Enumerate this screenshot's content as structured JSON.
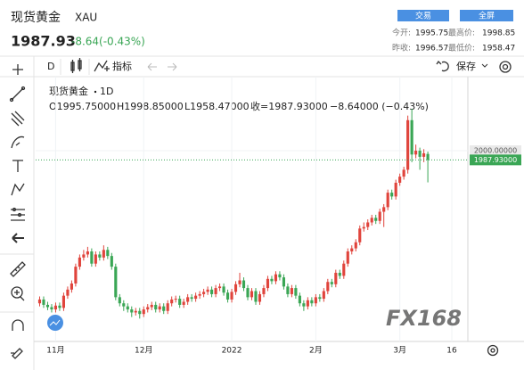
{
  "header": {
    "name": "现货黄金",
    "symbol": "XAU",
    "price": "1987.93",
    "change": "-8.64(-0.43%)",
    "buttons": [
      "交易",
      "全屏"
    ],
    "stats": [
      {
        "label": "今开:",
        "value": "1995.75"
      },
      {
        "label": "最高价:",
        "value": "1998.85"
      },
      {
        "label": "昨收:",
        "value": "1996.57"
      },
      {
        "label": "最低价:",
        "value": "1958.47"
      }
    ]
  },
  "toolbar": {
    "interval": "D",
    "indicators": "指标",
    "save": "保存"
  },
  "watermark": "FX168",
  "chart_data": {
    "type": "candlestick",
    "title": "现货黄金",
    "interval": "1D",
    "legend": {
      "open": "O1995.75000",
      "high": "H1998.85000",
      "low": "L1958.47000",
      "close": "收=1987.93000",
      "change": "−8.64000 (−0.43%)"
    },
    "open": [
      1800,
      1805,
      1798,
      1795,
      1792,
      1797,
      1794,
      1810,
      1818,
      1826,
      1848,
      1860,
      1864,
      1868,
      1852,
      1864,
      1860,
      1870,
      1862,
      1848,
      1808,
      1800,
      1796,
      1792,
      1788,
      1790,
      1786,
      1792,
      1795,
      1798,
      1792,
      1796,
      1790,
      1800,
      1805,
      1806,
      1798,
      1802,
      1808,
      1806,
      1810,
      1812,
      1815,
      1818,
      1812,
      1820,
      1822,
      1814,
      1805,
      1815,
      1825,
      1830,
      1820,
      1808,
      1816,
      1802,
      1812,
      1820,
      1832,
      1829,
      1838,
      1834,
      1822,
      1812,
      1820,
      1810,
      1800,
      1796,
      1804,
      1800,
      1808,
      1806,
      1816,
      1828,
      1825,
      1840,
      1836,
      1852,
      1868,
      1872,
      1880,
      1898,
      1900,
      1906,
      1912,
      1908,
      1920,
      1926,
      1945,
      1940,
      1958,
      1966,
      1975,
      2040,
      1995,
      2000,
      1992,
      1995.75
    ],
    "high": [
      1809,
      1809,
      1802,
      1799,
      1801,
      1801,
      1814,
      1822,
      1830,
      1852,
      1864,
      1870,
      1874,
      1872,
      1868,
      1868,
      1876,
      1874,
      1866,
      1852,
      1812,
      1804,
      1800,
      1796,
      1794,
      1794,
      1796,
      1799,
      1802,
      1802,
      1800,
      1800,
      1804,
      1809,
      1810,
      1810,
      1806,
      1812,
      1812,
      1814,
      1816,
      1819,
      1822,
      1822,
      1824,
      1826,
      1826,
      1818,
      1819,
      1829,
      1840,
      1834,
      1824,
      1820,
      1820,
      1816,
      1824,
      1836,
      1836,
      1842,
      1842,
      1838,
      1826,
      1824,
      1824,
      1814,
      1804,
      1808,
      1808,
      1812,
      1812,
      1820,
      1832,
      1832,
      1844,
      1844,
      1856,
      1872,
      1876,
      1884,
      1902,
      1906,
      1910,
      1916,
      1916,
      1924,
      1930,
      1949,
      1949,
      1962,
      1970,
      1979,
      2046,
      2055,
      2008,
      2004,
      2002,
      1998.85
    ],
    "low": [
      1796,
      1794,
      1791,
      1788,
      1788,
      1790,
      1790,
      1806,
      1814,
      1822,
      1844,
      1856,
      1860,
      1848,
      1848,
      1856,
      1856,
      1858,
      1844,
      1804,
      1796,
      1790,
      1788,
      1782,
      1784,
      1780,
      1782,
      1788,
      1791,
      1788,
      1788,
      1786,
      1786,
      1796,
      1801,
      1794,
      1794,
      1798,
      1802,
      1802,
      1806,
      1808,
      1811,
      1808,
      1808,
      1816,
      1810,
      1801,
      1801,
      1811,
      1821,
      1816,
      1804,
      1804,
      1798,
      1798,
      1808,
      1816,
      1825,
      1825,
      1830,
      1818,
      1808,
      1808,
      1806,
      1796,
      1790,
      1792,
      1796,
      1796,
      1802,
      1802,
      1812,
      1821,
      1821,
      1832,
      1832,
      1848,
      1864,
      1868,
      1876,
      1894,
      1896,
      1902,
      1904,
      1904,
      1900,
      1922,
      1936,
      1936,
      1954,
      1962,
      1970,
      1985,
      1990,
      1975,
      1985,
      1958.47
    ],
    "close": [
      1805,
      1798,
      1795,
      1792,
      1797,
      1794,
      1810,
      1818,
      1826,
      1848,
      1860,
      1864,
      1868,
      1852,
      1864,
      1860,
      1870,
      1862,
      1848,
      1808,
      1800,
      1796,
      1792,
      1788,
      1790,
      1786,
      1792,
      1795,
      1798,
      1792,
      1796,
      1790,
      1800,
      1805,
      1806,
      1798,
      1802,
      1808,
      1806,
      1810,
      1812,
      1815,
      1818,
      1812,
      1820,
      1822,
      1814,
      1805,
      1815,
      1825,
      1830,
      1820,
      1808,
      1816,
      1802,
      1812,
      1820,
      1832,
      1829,
      1838,
      1834,
      1822,
      1812,
      1820,
      1810,
      1800,
      1796,
      1804,
      1800,
      1808,
      1806,
      1816,
      1828,
      1825,
      1840,
      1836,
      1852,
      1868,
      1872,
      1880,
      1898,
      1900,
      1906,
      1912,
      1908,
      1920,
      1926,
      1945,
      1940,
      1958,
      1966,
      1975,
      2040,
      1995,
      2000,
      1992,
      1996.57,
      1987.93
    ],
    "up_color": "#e0443c",
    "down_color": "#3aa655",
    "xlim": [
      -1,
      107
    ],
    "xticks": [
      {
        "value": 4,
        "label": "11月"
      },
      {
        "value": 26,
        "label": "12月"
      },
      {
        "value": 48,
        "label": "2022"
      },
      {
        "value": 69,
        "label": "2月"
      },
      {
        "value": 90,
        "label": "3月"
      },
      {
        "value": 103,
        "label": "16"
      }
    ],
    "ylim": [
      1750,
      2097
    ],
    "yticks": [
      {
        "value": 2000,
        "label": "2000.00000"
      }
    ],
    "last_price": {
      "value": 1987.93,
      "label": "1987.93000"
    },
    "grid": true
  }
}
